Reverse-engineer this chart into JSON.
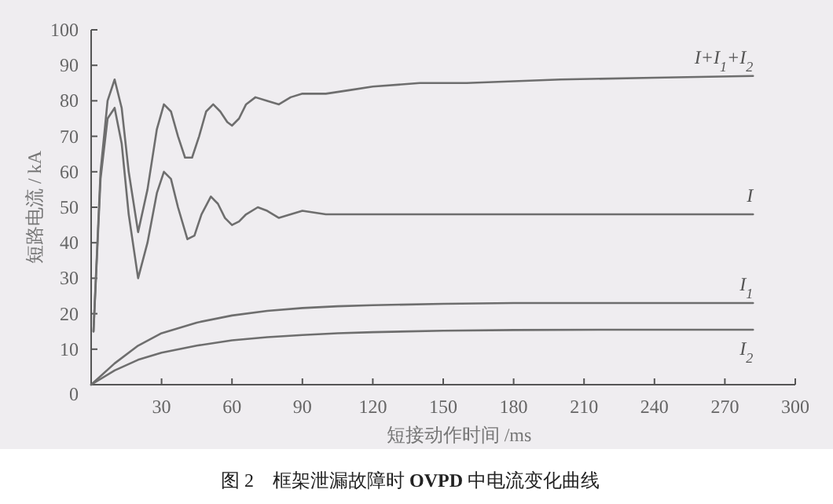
{
  "chart_data": {
    "type": "line",
    "title": "图 2　框架泄漏故障时 **OVPD** 中电流变化曲线",
    "xlabel": "短接动作时间 /ms",
    "ylabel": "短路电流 / kA",
    "xlim": [
      0,
      300
    ],
    "ylim": [
      0,
      100
    ],
    "xticks": [
      30,
      60,
      90,
      120,
      150,
      180,
      210,
      240,
      270,
      300
    ],
    "yticks": [
      0,
      10,
      20,
      30,
      40,
      50,
      60,
      70,
      80,
      90,
      100
    ],
    "grid": false,
    "marker": "none",
    "line_style": "solid",
    "series": [
      {
        "name": "I+I$_{1}$+I$_{2}$",
        "color": "#6e6e6e",
        "x": [
          1,
          4,
          7,
          10,
          13,
          16,
          20,
          24,
          28,
          31,
          34,
          37,
          40,
          43,
          46,
          49,
          52,
          55,
          58,
          60,
          63,
          66,
          70,
          75,
          80,
          85,
          90,
          95,
          100,
          110,
          120,
          140,
          160,
          200,
          240,
          282
        ],
        "values": [
          15,
          60,
          80,
          86,
          78,
          60,
          43,
          55,
          72,
          79,
          77,
          70,
          64,
          64,
          70,
          77,
          79,
          77,
          74,
          73,
          75,
          79,
          81,
          80,
          79,
          81,
          82,
          82,
          82,
          83,
          84,
          85,
          85,
          86,
          86.5,
          87
        ]
      },
      {
        "name": "I",
        "color": "#6e6e6e",
        "x": [
          1,
          4,
          7,
          10,
          13,
          16,
          20,
          24,
          28,
          31,
          34,
          37,
          41,
          44,
          47,
          51,
          54,
          57,
          60,
          63,
          66,
          71,
          75,
          80,
          85,
          90,
          100,
          120,
          150,
          200,
          240,
          282
        ],
        "values": [
          15,
          58,
          75,
          78,
          68,
          48,
          30,
          40,
          54,
          60,
          58,
          50,
          41,
          42,
          48,
          53,
          51,
          47,
          45,
          46,
          48,
          50,
          49,
          47,
          48,
          49,
          48,
          48,
          48,
          48,
          48,
          48
        ]
      },
      {
        "name": "I$_{1}$",
        "color": "#6e6e6e",
        "x": [
          0,
          10,
          20,
          30,
          45,
          60,
          75,
          90,
          105,
          120,
          150,
          180,
          220,
          282
        ],
        "values": [
          0,
          6,
          11,
          14.5,
          17.5,
          19.5,
          20.8,
          21.6,
          22.1,
          22.4,
          22.8,
          23,
          23,
          23
        ]
      },
      {
        "name": "I$_{2}$",
        "color": "#6e6e6e",
        "x": [
          0,
          10,
          20,
          30,
          45,
          60,
          75,
          90,
          105,
          120,
          150,
          180,
          220,
          282
        ],
        "values": [
          0,
          4,
          7,
          9,
          11,
          12.5,
          13.4,
          14,
          14.5,
          14.8,
          15.2,
          15.4,
          15.5,
          15.5
        ]
      }
    ]
  }
}
